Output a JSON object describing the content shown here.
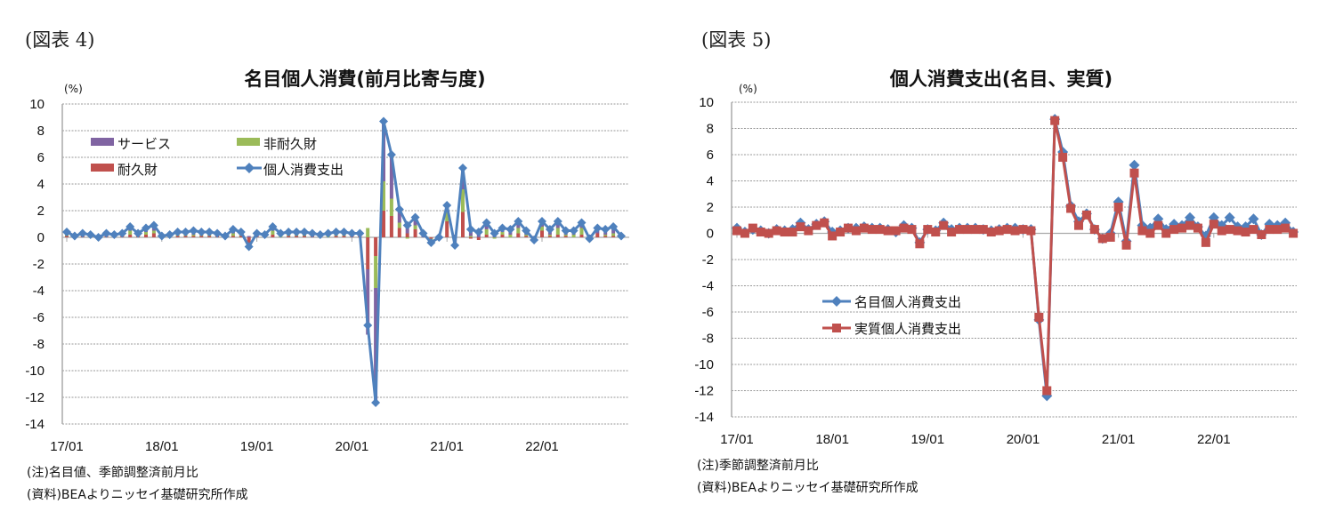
{
  "chart_data": [
    {
      "type": "bar+line",
      "figure_label": "(図表 4)",
      "title": "名目個人消費(前月比寄与度)",
      "ylabel": "(%)",
      "ylim": [
        -14,
        10
      ],
      "yticks": [
        10,
        8,
        6,
        4,
        2,
        0,
        -2,
        -4,
        -6,
        -8,
        -10,
        -12,
        -14
      ],
      "xtick_labels": [
        "17/01",
        "18/01",
        "19/01",
        "20/01",
        "21/01",
        "22/01"
      ],
      "x_start": "2017-01",
      "x_end": "2022-11",
      "grid": true,
      "legend_placement": "top-left",
      "colors": {
        "services": "#8064a2",
        "nondurable": "#9bbb59",
        "durable": "#c0504d",
        "total": "#4f81bd"
      },
      "series": [
        {
          "name": "サービス",
          "kind": "stacked-bar",
          "key": "services",
          "values": [
            0.2,
            0.1,
            0.2,
            0.1,
            0.1,
            0.2,
            0.1,
            0.2,
            0.3,
            0.2,
            0.3,
            0.4,
            0.2,
            0.1,
            0.2,
            0.2,
            0.3,
            0.2,
            0.2,
            0.2,
            0.2,
            0.3,
            0.2,
            0.1,
            0.2,
            0.1,
            0.3,
            0.2,
            0.2,
            0.2,
            0.2,
            0.2,
            0.1,
            0.2,
            0.2,
            0.2,
            0.2,
            0.2,
            -4.9,
            -8.6,
            4.5,
            3.3,
            1.0,
            0.7,
            0.6,
            0.3,
            -0.2,
            0.1,
            0.5,
            0.2,
            1.6,
            0.6,
            0.6,
            0.5,
            0.4,
            0.3,
            0.4,
            0.5,
            0.3,
            0.1,
            0.4,
            0.4,
            0.5,
            0.3,
            0.3,
            0.4,
            0.2,
            0.4,
            0.4,
            0.5,
            0.2
          ]
        },
        {
          "name": "非耐久財",
          "kind": "stacked-bar",
          "key": "nondurable",
          "values": [
            0.1,
            0.0,
            0.0,
            0.1,
            -0.1,
            0.0,
            0.1,
            0.0,
            0.3,
            0.0,
            0.2,
            0.2,
            0.0,
            0.1,
            0.1,
            0.1,
            0.1,
            0.1,
            0.1,
            0.0,
            -0.1,
            0.2,
            0.1,
            -0.3,
            0.0,
            0.1,
            0.3,
            0.1,
            0.1,
            0.1,
            0.1,
            0.0,
            0.0,
            0.1,
            0.1,
            0.1,
            0.0,
            0.0,
            0.7,
            -2.4,
            2.2,
            1.3,
            0.4,
            -0.1,
            0.3,
            0.0,
            -0.1,
            -0.1,
            0.7,
            -0.4,
            1.7,
            0.1,
            0.0,
            0.4,
            -0.1,
            0.2,
            0.2,
            0.4,
            0.1,
            -0.1,
            0.3,
            0.1,
            0.5,
            0.1,
            0.2,
            0.5,
            -0.2,
            0.0,
            0.1,
            0.2,
            0.0
          ]
        },
        {
          "name": "耐久財",
          "kind": "stacked-bar",
          "key": "durable",
          "values": [
            0.1,
            0.0,
            0.1,
            0.0,
            0.0,
            0.1,
            0.0,
            0.1,
            0.2,
            0.1,
            0.2,
            0.3,
            -0.1,
            0.0,
            0.1,
            0.1,
            0.1,
            0.1,
            0.1,
            0.1,
            0.0,
            0.1,
            0.1,
            -0.5,
            0.1,
            0.0,
            0.2,
            0.0,
            0.1,
            0.1,
            0.1,
            0.1,
            0.1,
            0.0,
            0.1,
            0.1,
            0.1,
            0.1,
            -2.4,
            -1.4,
            2.0,
            1.6,
            0.7,
            0.3,
            0.6,
            0.0,
            -0.1,
            0.0,
            1.2,
            -0.4,
            1.9,
            -0.1,
            -0.2,
            0.2,
            0.0,
            0.2,
            0.0,
            0.3,
            0.1,
            -0.2,
            0.5,
            0.1,
            0.2,
            0.1,
            0.0,
            0.2,
            -0.1,
            0.3,
            0.1,
            0.1,
            -0.1
          ]
        },
        {
          "name": "個人消費支出",
          "kind": "line-diamond",
          "key": "total",
          "values": [
            0.4,
            0.1,
            0.3,
            0.2,
            0.0,
            0.3,
            0.2,
            0.3,
            0.8,
            0.3,
            0.7,
            0.9,
            0.1,
            0.2,
            0.4,
            0.4,
            0.5,
            0.4,
            0.4,
            0.3,
            0.1,
            0.6,
            0.4,
            -0.7,
            0.3,
            0.2,
            0.8,
            0.3,
            0.4,
            0.4,
            0.4,
            0.3,
            0.2,
            0.3,
            0.4,
            0.4,
            0.3,
            0.3,
            -6.6,
            -12.4,
            8.7,
            6.2,
            2.1,
            0.9,
            1.5,
            0.3,
            -0.4,
            0.0,
            2.4,
            -0.6,
            5.2,
            0.6,
            0.4,
            1.1,
            0.3,
            0.7,
            0.6,
            1.2,
            0.5,
            -0.2,
            1.2,
            0.6,
            1.2,
            0.5,
            0.5,
            1.1,
            -0.1,
            0.7,
            0.6,
            0.8,
            0.1
          ]
        }
      ],
      "notes": [
        "(注)名目値、季節調整済前月比",
        "(資料)BEAよりニッセイ基礎研究所作成"
      ]
    },
    {
      "type": "line",
      "figure_label": "(図表 5)",
      "title": "個人消費支出(名目、実質)",
      "ylabel": "(%)",
      "ylim": [
        -14,
        10
      ],
      "yticks": [
        10,
        8,
        6,
        4,
        2,
        0,
        -2,
        -4,
        -6,
        -8,
        -10,
        -12,
        -14
      ],
      "xtick_labels": [
        "17/01",
        "18/01",
        "19/01",
        "20/01",
        "21/01",
        "22/01"
      ],
      "x_start": "2017-01",
      "x_end": "2022-11",
      "grid": true,
      "legend_placement": "center-left",
      "colors": {
        "nominal": "#4f81bd",
        "real": "#c0504d"
      },
      "series": [
        {
          "name": "名目個人消費支出",
          "marker": "diamond",
          "values": [
            0.4,
            0.1,
            0.3,
            0.2,
            0.0,
            0.3,
            0.2,
            0.3,
            0.8,
            0.3,
            0.7,
            0.9,
            0.1,
            0.2,
            0.4,
            0.4,
            0.5,
            0.4,
            0.4,
            0.3,
            0.1,
            0.6,
            0.4,
            -0.7,
            0.3,
            0.2,
            0.8,
            0.3,
            0.4,
            0.4,
            0.4,
            0.3,
            0.2,
            0.3,
            0.4,
            0.4,
            0.3,
            0.3,
            -6.6,
            -12.4,
            8.7,
            6.2,
            2.1,
            0.9,
            1.5,
            0.3,
            -0.4,
            0.0,
            2.4,
            -0.6,
            5.2,
            0.6,
            0.4,
            1.1,
            0.3,
            0.7,
            0.6,
            1.2,
            0.5,
            -0.2,
            1.2,
            0.6,
            1.2,
            0.5,
            0.5,
            1.1,
            -0.1,
            0.7,
            0.6,
            0.8,
            0.1
          ]
        },
        {
          "name": "実質個人消費支出",
          "marker": "square",
          "values": [
            0.2,
            0.0,
            0.4,
            0.1,
            0.0,
            0.2,
            0.1,
            0.1,
            0.5,
            0.2,
            0.6,
            0.8,
            -0.2,
            0.1,
            0.4,
            0.2,
            0.4,
            0.3,
            0.3,
            0.2,
            0.2,
            0.4,
            0.3,
            -0.8,
            0.3,
            0.1,
            0.6,
            0.1,
            0.3,
            0.3,
            0.3,
            0.3,
            0.1,
            0.2,
            0.3,
            0.2,
            0.3,
            0.2,
            -6.4,
            -12.0,
            8.6,
            5.8,
            1.9,
            0.6,
            1.4,
            0.3,
            -0.4,
            -0.3,
            2.0,
            -0.9,
            4.6,
            0.2,
            0.0,
            0.6,
            0.0,
            0.3,
            0.4,
            0.6,
            0.4,
            -0.7,
            0.7,
            0.2,
            0.3,
            0.2,
            0.1,
            0.3,
            -0.1,
            0.3,
            0.3,
            0.4,
            0.0
          ]
        }
      ],
      "notes": [
        "(注)季節調整済前月比",
        "(資料)BEAよりニッセイ基礎研究所作成"
      ]
    }
  ]
}
